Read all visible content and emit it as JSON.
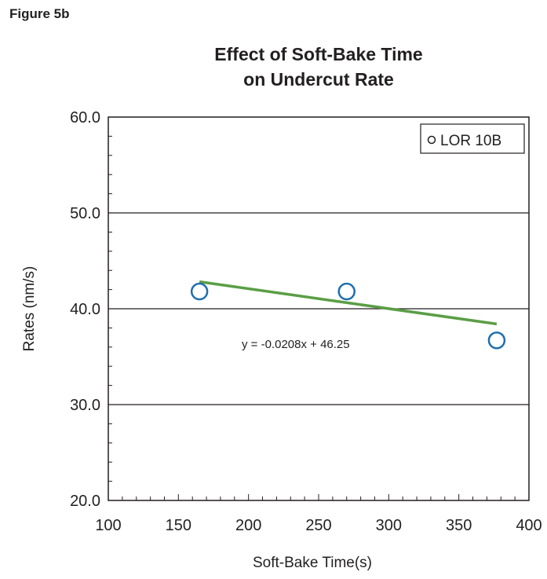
{
  "figure_label": "Figure 5b",
  "chart_data": {
    "type": "scatter",
    "title": "Effect of Soft-Bake Time",
    "subtitle": "on Undercut Rate",
    "xlabel": "Soft-Bake Time(s)",
    "ylabel": "Rates (nm/s)",
    "xlim": [
      100,
      400
    ],
    "ylim": [
      20.0,
      60.0
    ],
    "x_ticks": [
      "100",
      "150",
      "200",
      "250",
      "300",
      "350",
      "400"
    ],
    "y_ticks": [
      "20.0",
      "30.0",
      "40.0",
      "50.0",
      "60.0"
    ],
    "horizontal_grid": true,
    "legend_position": "top-right",
    "series": [
      {
        "name": "LOR 10B",
        "x": [
          165,
          270,
          377
        ],
        "y": [
          41.8,
          41.8,
          36.7
        ],
        "color": "#1f6fae"
      }
    ],
    "trendline": {
      "slope": -0.0208,
      "intercept": 46.25,
      "x_range": [
        165,
        377
      ],
      "color": "#5a9e45",
      "equation": "y = -0.0208x + 46.25"
    }
  }
}
